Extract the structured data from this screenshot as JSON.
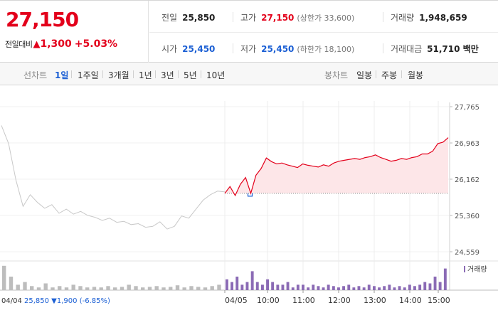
{
  "summary": {
    "price": "27,150",
    "change_label": "전일대비",
    "change_arrow": "▲",
    "change_value": "1,300",
    "change_rate": "+5.03%",
    "prev_close_label": "전일",
    "prev_close": "25,850",
    "high_label": "고가",
    "high": "27,150",
    "upper_limit": "(상한가 33,600)",
    "volume_label": "거래량",
    "volume": "1,948,659",
    "open_label": "시가",
    "open": "25,450",
    "low_label": "저가",
    "low": "25,450",
    "lower_limit": "(하한가 18,100)",
    "amount_label": "거래대금",
    "amount": "51,710 백만"
  },
  "tabs": {
    "line_head": "선차트",
    "line_items": [
      "1일",
      "1주일",
      "3개월",
      "1년",
      "3년",
      "5년",
      "10년"
    ],
    "active": "1일",
    "candle_head": "봉차트",
    "candle_items": [
      "일봉",
      "주봉",
      "월봉"
    ]
  },
  "colors": {
    "up": "#e3001b",
    "down": "#1b5fd4",
    "prev_day_line": "#c8c8c8",
    "fill": "#fde6e8",
    "volume_today": "#8b6bb5",
    "volume_prev": "#bdbdbd"
  },
  "chart_data": {
    "type": "line",
    "y_ticks": [
      "27,765",
      "26,963",
      "26,162",
      "25,360",
      "24,559"
    ],
    "ylim": [
      24559,
      27765
    ],
    "baseline": 25850,
    "x_ticks": [
      "04/05",
      "10:00",
      "11:00",
      "12:00",
      "13:00",
      "14:00",
      "15:00"
    ],
    "prev_day_series": [
      27350,
      26950,
      26150,
      25560,
      25820,
      25650,
      25520,
      25600,
      25410,
      25500,
      25390,
      25450,
      25360,
      25320,
      25250,
      25300,
      25210,
      25230,
      25160,
      25180,
      25100,
      25120,
      25220,
      25060,
      25120,
      25350,
      25300,
      25500,
      25700,
      25820,
      25900,
      25880
    ],
    "today_series": [
      25850,
      26000,
      25800,
      26050,
      26200,
      25850,
      26250,
      26400,
      26630,
      26550,
      26500,
      26520,
      26480,
      26450,
      26420,
      26500,
      26470,
      26450,
      26430,
      26480,
      26450,
      26520,
      26560,
      26580,
      26600,
      26620,
      26600,
      26640,
      26660,
      26700,
      26640,
      26600,
      26560,
      26580,
      26620,
      26600,
      26640,
      26660,
      26720,
      26720,
      26780,
      26950,
      26980,
      27080
    ],
    "series_names": [],
    "footer": {
      "date": "04/04",
      "close": "25,850",
      "arrow": "▼",
      "change": "1,900",
      "rate": "(-6.85%)"
    },
    "volume_label": "거래량",
    "volume_today": [
      0.4,
      0.3,
      0.5,
      0.2,
      0.3,
      0.7,
      0.3,
      0.2,
      0.4,
      0.3,
      0.2,
      0.2,
      0.3,
      0.1,
      0.2,
      0.2,
      0.1,
      0.2,
      0.15,
      0.1,
      0.2,
      0.15,
      0.1,
      0.15,
      0.2,
      0.1,
      0.15,
      0.1,
      0.2,
      0.15,
      0.1,
      0.15,
      0.2,
      0.1,
      0.15,
      0.1,
      0.2,
      0.15,
      0.2,
      0.3,
      0.25,
      0.5,
      0.3,
      0.8
    ],
    "volume_prev": [
      0.9,
      0.5,
      0.2,
      0.3,
      0.15,
      0.1,
      0.25,
      0.1,
      0.15,
      0.1,
      0.2,
      0.15,
      0.1,
      0.12,
      0.1,
      0.15,
      0.1,
      0.12,
      0.2,
      0.15,
      0.1,
      0.12,
      0.15,
      0.1,
      0.12,
      0.18,
      0.1,
      0.15,
      0.12,
      0.1,
      0.15,
      0.2
    ]
  }
}
